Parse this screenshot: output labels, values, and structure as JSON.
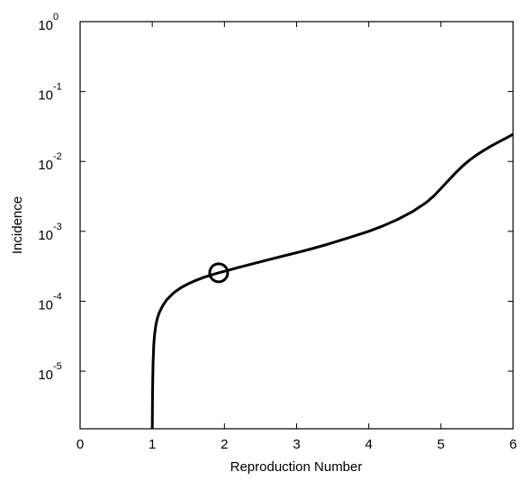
{
  "chart_data": {
    "type": "line",
    "title": "",
    "xlabel": "Reproduction Number",
    "ylabel": "Incidence",
    "xlim": [
      0,
      6
    ],
    "ylim": [
      1.5e-06,
      1
    ],
    "yscale": "log",
    "grid": false,
    "x_ticks": [
      "0",
      "1",
      "2",
      "3",
      "4",
      "5",
      "6"
    ],
    "y_ticks": [
      {
        "base": "10",
        "exp": "0"
      },
      {
        "base": "10",
        "exp": "-1"
      },
      {
        "base": "10",
        "exp": "-2"
      },
      {
        "base": "10",
        "exp": "-3"
      },
      {
        "base": "10",
        "exp": "-4"
      },
      {
        "base": "10",
        "exp": "-5"
      }
    ],
    "series": [
      {
        "color": "#000000",
        "x": [
          1.0,
          1.002,
          1.005,
          1.01,
          1.02,
          1.03,
          1.05,
          1.07,
          1.1,
          1.15,
          1.2,
          1.3,
          1.4,
          1.5,
          1.6,
          1.7,
          1.8,
          1.9,
          2.0,
          2.2,
          2.4,
          2.6,
          2.8,
          3.0,
          3.2,
          3.4,
          3.6,
          3.8,
          4.0,
          4.2,
          4.4,
          4.6,
          4.8,
          4.9,
          5.0,
          5.1,
          5.2,
          5.3,
          5.4,
          5.5,
          5.6,
          5.7,
          5.8,
          5.9,
          6.0
        ],
        "y": [
          1.5e-06,
          3e-06,
          6e-06,
          1.2e-05,
          2.3e-05,
          3.2e-05,
          4.6e-05,
          5.7e-05,
          7e-05,
          8.8e-05,
          0.000105,
          0.000133,
          0.000157,
          0.000178,
          0.000198,
          0.000217,
          0.000235,
          0.000252,
          0.000268,
          0.000305,
          0.000345,
          0.00039,
          0.00044,
          0.000495,
          0.00056,
          0.00064,
          0.00074,
          0.00086,
          0.001,
          0.0012,
          0.00148,
          0.0019,
          0.0026,
          0.0032,
          0.0041,
          0.0053,
          0.0068,
          0.0086,
          0.0105,
          0.0125,
          0.0145,
          0.0167,
          0.019,
          0.0215,
          0.0245
        ]
      }
    ],
    "marker": {
      "x": 1.92,
      "y": 0.000255,
      "shape": "circle"
    }
  }
}
